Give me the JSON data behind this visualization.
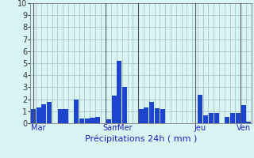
{
  "xlabel": "Précipitations 24h ( mm )",
  "ylim": [
    0,
    10
  ],
  "yticks": [
    0,
    1,
    2,
    3,
    4,
    5,
    6,
    7,
    8,
    9,
    10
  ],
  "bar_color": "#1c44cc",
  "background_color": "#d8f4f4",
  "grid_color": "#aabbbb",
  "values": [
    1.2,
    1.3,
    1.6,
    1.8,
    0.0,
    1.2,
    1.2,
    0.0,
    2.0,
    0.4,
    0.4,
    0.45,
    0.5,
    0.0,
    0.3,
    2.3,
    5.2,
    3.0,
    0.0,
    0.0,
    1.2,
    1.3,
    1.75,
    1.25,
    1.2,
    0.0,
    0.0,
    0.0,
    0.0,
    0.0,
    0.0,
    2.35,
    0.65,
    0.85,
    0.85,
    0.0,
    0.5,
    0.85,
    0.85,
    1.5,
    0.15
  ],
  "day_labels": [
    "Mar",
    "Sam",
    "Mer",
    "Jeu",
    "Ven"
  ],
  "day_tick_positions": [
    1,
    14.5,
    17,
    31,
    39
  ],
  "day_vline_positions": [
    0,
    13.5,
    19.5,
    30,
    38.5
  ],
  "ylabel_fontsize": 7,
  "xlabel_fontsize": 8,
  "tick_fontsize": 7
}
